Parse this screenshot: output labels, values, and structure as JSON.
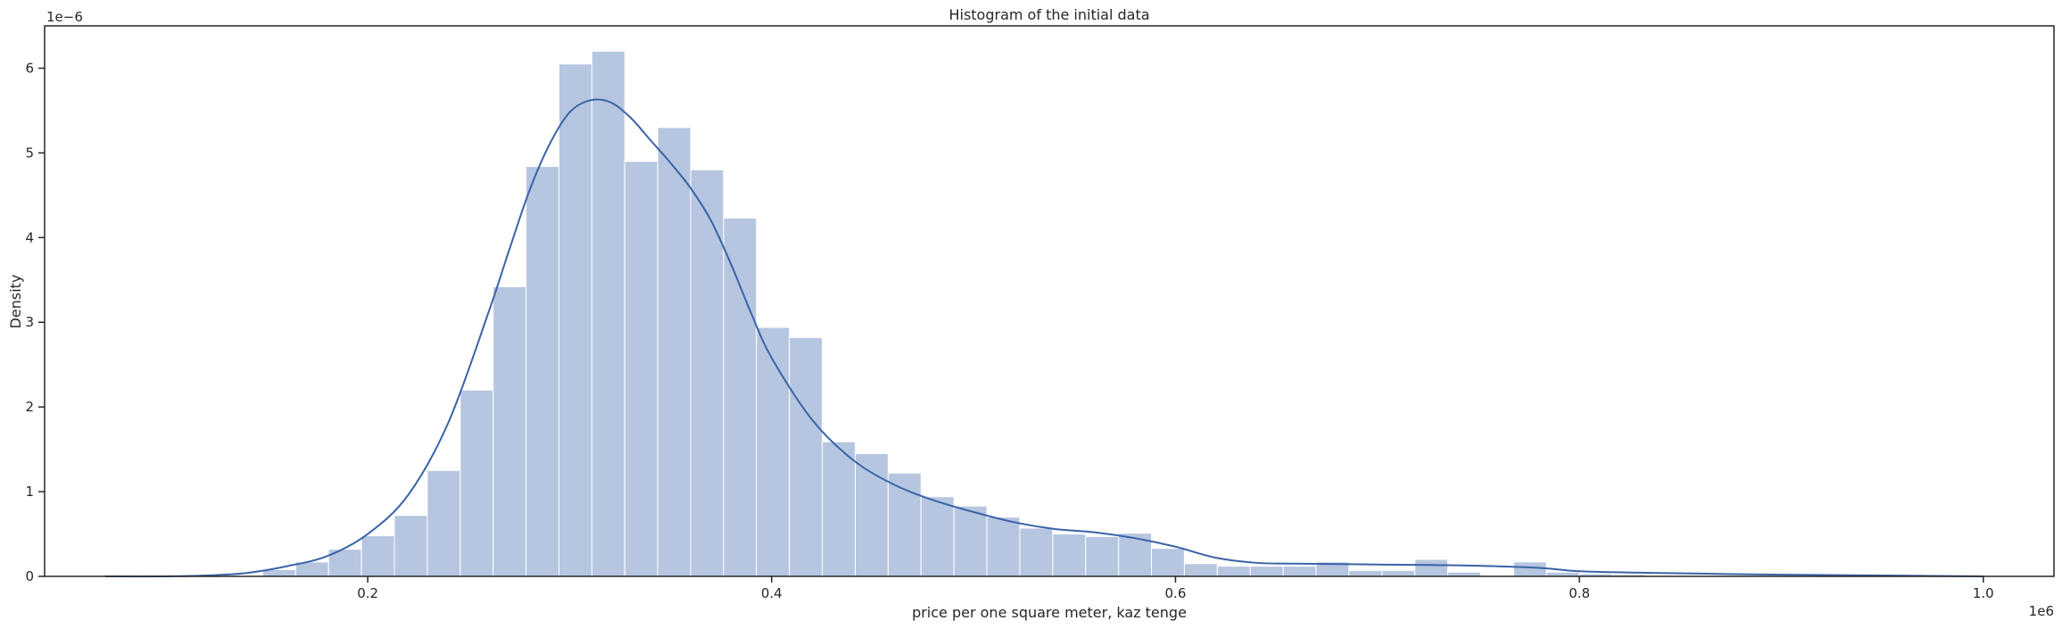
{
  "chart_data": {
    "type": "bar",
    "title": "Histogram of the initial data",
    "xlabel": "price per one square meter, kaz tenge",
    "ylabel": "Density",
    "x_offset_label": "1e6",
    "y_offset_label": "1e−6",
    "xlim": [
      0.04,
      1.035
    ],
    "ylim": [
      0,
      6.5
    ],
    "x_ticks": [
      0.2,
      0.4,
      0.6,
      0.8,
      1.0
    ],
    "x_tick_labels": [
      "0.2",
      "0.4",
      "0.6",
      "0.8",
      "1.0"
    ],
    "y_ticks": [
      0,
      1,
      2,
      3,
      4,
      5,
      6
    ],
    "y_tick_labels": [
      "0",
      "1",
      "2",
      "3",
      "4",
      "5",
      "6"
    ],
    "grid": false,
    "bar_color": "#b6c6e0",
    "bar_edge_color": "#ffffff",
    "line_color": "#3b63a8",
    "histogram": {
      "bin_start": 0.148,
      "bin_width": 0.0163,
      "densities": [
        0.08,
        0.17,
        0.32,
        0.48,
        0.72,
        1.25,
        2.2,
        3.42,
        4.84,
        6.05,
        6.2,
        4.9,
        5.3,
        4.8,
        4.23,
        2.94,
        2.82,
        1.59,
        1.45,
        1.22,
        0.94,
        0.83,
        0.7,
        0.57,
        0.5,
        0.47,
        0.51,
        0.33,
        0.15,
        0.12,
        0.12,
        0.12,
        0.17,
        0.07,
        0.07,
        0.2,
        0.05,
        0.01,
        0.17,
        0.05,
        0.03,
        0.02,
        0.01,
        0.01,
        0.01,
        0.01,
        0.01,
        0.03
      ]
    },
    "kde": {
      "x": [
        0.07,
        0.1,
        0.12,
        0.14,
        0.16,
        0.18,
        0.2,
        0.22,
        0.24,
        0.26,
        0.27,
        0.28,
        0.29,
        0.3,
        0.31,
        0.32,
        0.33,
        0.34,
        0.35,
        0.36,
        0.37,
        0.38,
        0.39,
        0.4,
        0.42,
        0.44,
        0.46,
        0.48,
        0.5,
        0.52,
        0.54,
        0.56,
        0.58,
        0.6,
        0.62,
        0.64,
        0.66,
        0.7,
        0.74,
        0.78,
        0.8,
        0.84,
        0.9,
        0.95,
        1.0
      ],
      "y": [
        0.0,
        0.0,
        0.01,
        0.04,
        0.12,
        0.24,
        0.5,
        0.96,
        1.82,
        3.13,
        3.85,
        4.55,
        5.1,
        5.48,
        5.62,
        5.6,
        5.42,
        5.15,
        4.88,
        4.58,
        4.2,
        3.68,
        3.1,
        2.58,
        1.85,
        1.38,
        1.09,
        0.9,
        0.76,
        0.64,
        0.56,
        0.52,
        0.45,
        0.35,
        0.22,
        0.16,
        0.15,
        0.14,
        0.13,
        0.1,
        0.06,
        0.04,
        0.02,
        0.01,
        0.0
      ]
    }
  }
}
